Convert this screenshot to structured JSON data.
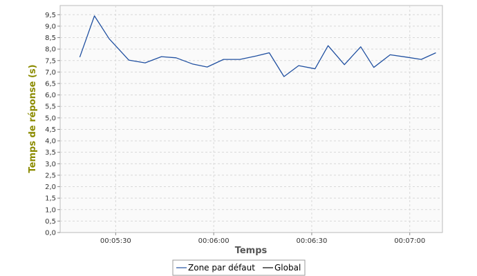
{
  "chart_data": {
    "type": "line",
    "xlabel": "Temps",
    "ylabel": "Temps de réponse (s)",
    "ylim": [
      0,
      9.9
    ],
    "y_ticks": [
      "0,0",
      "0,5",
      "1,0",
      "1,5",
      "2,0",
      "2,5",
      "3,0",
      "3,5",
      "4,0",
      "4,5",
      "5,0",
      "5,5",
      "6,0",
      "6,5",
      "7,0",
      "7,5",
      "8,0",
      "8,5",
      "9,0",
      "9,5"
    ],
    "x_ticks": [
      {
        "t": 330,
        "label": "00:05:30"
      },
      {
        "t": 360,
        "label": "00:06:00"
      },
      {
        "t": 390,
        "label": "00:06:30"
      },
      {
        "t": 420,
        "label": "00:07:00"
      }
    ],
    "xlim": [
      313,
      430
    ],
    "grid": true,
    "legend_position": "bottom",
    "series": [
      {
        "name": "Zone par défaut",
        "color": "#1f4fa0",
        "points": [
          [
            319,
            7.65
          ],
          [
            323.5,
            9.45
          ],
          [
            328,
            8.45
          ],
          [
            334,
            7.52
          ],
          [
            339,
            7.4
          ],
          [
            344,
            7.67
          ],
          [
            348.5,
            7.62
          ],
          [
            353.5,
            7.35
          ],
          [
            358,
            7.22
          ],
          [
            363,
            7.55
          ],
          [
            368,
            7.55
          ],
          [
            373,
            7.7
          ],
          [
            377,
            7.84
          ],
          [
            381.5,
            6.8
          ],
          [
            386,
            7.28
          ],
          [
            391,
            7.14
          ],
          [
            395,
            8.15
          ],
          [
            400,
            7.32
          ],
          [
            405,
            8.1
          ],
          [
            409,
            7.2
          ],
          [
            414,
            7.75
          ],
          [
            419,
            7.65
          ],
          [
            423.5,
            7.55
          ],
          [
            428,
            7.84
          ]
        ]
      },
      {
        "name": "Global",
        "color": "#000000",
        "points": []
      }
    ]
  }
}
